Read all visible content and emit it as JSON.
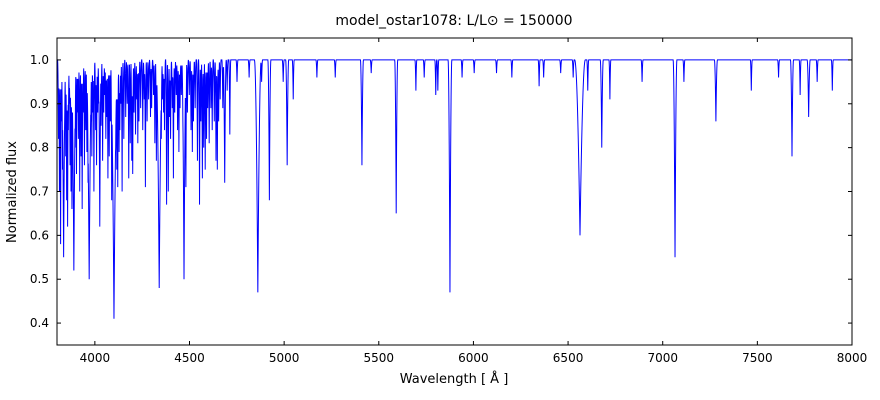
{
  "chart_data": {
    "type": "line",
    "title": "model_ostar1078: L/L⊙ = 150000",
    "xlabel": "Wavelength [ Å ]",
    "ylabel": "Normalized flux",
    "xlim": [
      3800,
      8000
    ],
    "ylim": [
      0.35,
      1.05
    ],
    "xticks": [
      4000,
      4500,
      5000,
      5500,
      6000,
      6500,
      7000,
      7500,
      8000
    ],
    "yticks": [
      0.4,
      0.5,
      0.6,
      0.7,
      0.8,
      0.9,
      1.0
    ],
    "grid": false,
    "legend": "none",
    "line_color": "#0000ff",
    "background": "#ffffff",
    "continuum": 1.0,
    "absorption_lines": [
      [
        3808,
        0.82
      ],
      [
        3813,
        0.7
      ],
      [
        3819,
        0.58
      ],
      [
        3824,
        0.86
      ],
      [
        3829,
        0.75
      ],
      [
        3835,
        0.55,
        6
      ],
      [
        3841,
        0.88
      ],
      [
        3846,
        0.78
      ],
      [
        3851,
        0.68
      ],
      [
        3856,
        0.62
      ],
      [
        3860,
        0.84
      ],
      [
        3865,
        0.9
      ],
      [
        3869,
        0.76
      ],
      [
        3874,
        0.7
      ],
      [
        3879,
        0.66
      ],
      [
        3884,
        0.86
      ],
      [
        3889,
        0.52,
        7
      ],
      [
        3896,
        0.8
      ],
      [
        3903,
        0.74
      ],
      [
        3908,
        0.88
      ],
      [
        3913,
        0.82
      ],
      [
        3920,
        0.7
      ],
      [
        3927,
        0.78
      ],
      [
        3933,
        0.66
      ],
      [
        3938,
        0.88
      ],
      [
        3945,
        0.76
      ],
      [
        3952,
        0.84
      ],
      [
        3958,
        0.79
      ],
      [
        3964,
        0.72
      ],
      [
        3970,
        0.5,
        8
      ],
      [
        3979,
        0.86
      ],
      [
        3984,
        0.78
      ],
      [
        3990,
        0.88
      ],
      [
        3995,
        0.7
      ],
      [
        4004,
        0.84
      ],
      [
        4009,
        0.76
      ],
      [
        4015,
        0.88
      ],
      [
        4021,
        0.9
      ],
      [
        4026,
        0.62,
        4
      ],
      [
        4033,
        0.85
      ],
      [
        4041,
        0.77
      ],
      [
        4047,
        0.88
      ],
      [
        4053,
        0.92
      ],
      [
        4058,
        0.82
      ],
      [
        4063,
        0.87
      ],
      [
        4069,
        0.73
      ],
      [
        4076,
        0.78
      ],
      [
        4082,
        0.86
      ],
      [
        4089,
        0.68
      ],
      [
        4097,
        0.72
      ],
      [
        4101,
        0.41,
        10
      ],
      [
        4110,
        0.8
      ],
      [
        4116,
        0.75
      ],
      [
        4121,
        0.71
      ],
      [
        4128,
        0.79
      ],
      [
        4132,
        0.84
      ],
      [
        4137,
        0.9
      ],
      [
        4144,
        0.7
      ],
      [
        4153,
        0.82
      ],
      [
        4163,
        0.87
      ],
      [
        4171,
        0.9
      ],
      [
        4179,
        0.73
      ],
      [
        4187,
        0.81
      ],
      [
        4195,
        0.77
      ],
      [
        4200,
        0.74
      ],
      [
        4207,
        0.88
      ],
      [
        4215,
        0.83
      ],
      [
        4222,
        0.91
      ],
      [
        4227,
        0.81
      ],
      [
        4233,
        0.86
      ],
      [
        4242,
        0.89
      ],
      [
        4253,
        0.84
      ],
      [
        4261,
        0.91
      ],
      [
        4267,
        0.71
      ],
      [
        4276,
        0.86
      ],
      [
        4284,
        0.91
      ],
      [
        4294,
        0.87
      ],
      [
        4300,
        0.89
      ],
      [
        4310,
        0.92
      ],
      [
        4317,
        0.81
      ],
      [
        4325,
        0.77
      ],
      [
        4332,
        0.85
      ],
      [
        4340,
        0.48,
        9
      ],
      [
        4351,
        0.82
      ],
      [
        4358,
        0.91
      ],
      [
        4363,
        0.88
      ],
      [
        4368,
        0.84
      ],
      [
        4379,
        0.67
      ],
      [
        4388,
        0.7
      ],
      [
        4395,
        0.87
      ],
      [
        4400,
        0.82
      ],
      [
        4409,
        0.89
      ],
      [
        4415,
        0.73
      ],
      [
        4422,
        0.88
      ],
      [
        4430,
        0.92
      ],
      [
        4437,
        0.84
      ],
      [
        4444,
        0.79
      ],
      [
        4450,
        0.89
      ],
      [
        4457,
        0.92
      ],
      [
        4465,
        0.86
      ],
      [
        4471,
        0.5,
        6
      ],
      [
        4481,
        0.71
      ],
      [
        4489,
        0.88
      ],
      [
        4499,
        0.92
      ],
      [
        4508,
        0.84
      ],
      [
        4515,
        0.79
      ],
      [
        4521,
        0.86
      ],
      [
        4530,
        0.89
      ],
      [
        4542,
        0.77
      ],
      [
        4553,
        0.67
      ],
      [
        4560,
        0.86
      ],
      [
        4568,
        0.73
      ],
      [
        4575,
        0.8
      ],
      [
        4583,
        0.75
      ],
      [
        4590,
        0.82
      ],
      [
        4596,
        0.89
      ],
      [
        4604,
        0.81
      ],
      [
        4613,
        0.89
      ],
      [
        4620,
        0.84
      ],
      [
        4631,
        0.86
      ],
      [
        4640,
        0.77
      ],
      [
        4647,
        0.75
      ],
      [
        4654,
        0.86
      ],
      [
        4662,
        0.91
      ],
      [
        4676,
        0.89
      ],
      [
        4686,
        0.72,
        4
      ],
      [
        4699,
        0.93
      ],
      [
        4713,
        0.83
      ],
      [
        4751,
        0.95
      ],
      [
        4815,
        0.96
      ],
      [
        4861,
        0.47,
        9
      ],
      [
        4881,
        0.95
      ],
      [
        4922,
        0.68,
        4
      ],
      [
        4995,
        0.95
      ],
      [
        5016,
        0.76,
        4
      ],
      [
        5048,
        0.91
      ],
      [
        5173,
        0.96
      ],
      [
        5270,
        0.96
      ],
      [
        5411,
        0.76,
        4
      ],
      [
        5460,
        0.97
      ],
      [
        5592,
        0.65,
        4
      ],
      [
        5696,
        0.93
      ],
      [
        5740,
        0.96
      ],
      [
        5801,
        0.92
      ],
      [
        5812,
        0.93
      ],
      [
        5876,
        0.47,
        5
      ],
      [
        5940,
        0.96
      ],
      [
        6004,
        0.97
      ],
      [
        6122,
        0.97
      ],
      [
        6203,
        0.96
      ],
      [
        6347,
        0.94
      ],
      [
        6371,
        0.96
      ],
      [
        6461,
        0.97
      ],
      [
        6527,
        0.96
      ],
      [
        6563,
        0.6,
        14
      ],
      [
        6604,
        0.93
      ],
      [
        6678,
        0.8,
        4
      ],
      [
        6721,
        0.91
      ],
      [
        6891,
        0.95
      ],
      [
        7065,
        0.55,
        5
      ],
      [
        7112,
        0.95
      ],
      [
        7281,
        0.86,
        4
      ],
      [
        7468,
        0.93
      ],
      [
        7612,
        0.96
      ],
      [
        7683,
        0.78,
        4
      ],
      [
        7726,
        0.92
      ],
      [
        7771,
        0.87,
        4
      ],
      [
        7816,
        0.95
      ],
      [
        7896,
        0.93
      ]
    ]
  }
}
